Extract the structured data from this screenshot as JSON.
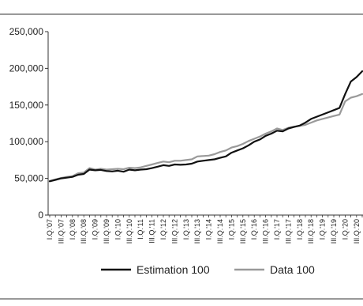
{
  "chart_data": {
    "type": "line",
    "title": "",
    "xlabel": "",
    "ylabel": "",
    "ylim": [
      0,
      250000
    ],
    "yticks": [
      0,
      50000,
      100000,
      150000,
      200000,
      250000
    ],
    "ytick_labels": [
      "0",
      "50,000",
      "100,000",
      "150,000",
      "200,000",
      "250,000"
    ],
    "grid": false,
    "legend_position": "bottom",
    "categories": [
      "I.Q.'07",
      "II.Q.'07",
      "III.Q.'07",
      "IV.Q.'07",
      "I.Q.'08",
      "II.Q.'08",
      "III.Q.'08",
      "IV.Q.'08",
      "I.Q.'09",
      "II.Q.'09",
      "III.Q.'09",
      "IV.Q.'09",
      "I.Q.'10",
      "II.Q.'10",
      "III.Q.'10",
      "IV.Q.'10",
      "I.Q.'11",
      "II.Q.'11",
      "III.Q.'11",
      "IV.Q.'11",
      "I.Q.'12",
      "II.Q.'12",
      "III.Q.'12",
      "IV.Q.'12",
      "I.Q.'13",
      "II.Q.'13",
      "III.Q.'13",
      "IV.Q.'13",
      "I.Q.'14",
      "II.Q.'14",
      "III.Q.'14",
      "IV.Q.'14",
      "I.Q.'15",
      "II.Q.'15",
      "III.Q.'15",
      "IV.Q.'15",
      "I.Q.'16",
      "II.Q.'16",
      "III.Q.'16",
      "IV.Q.'16",
      "I.Q.'17",
      "II.Q.'17",
      "III.Q.'17",
      "IV.Q.'17",
      "I.Q.'18",
      "II.Q.'18",
      "III.Q.'18",
      "IV.Q.'18",
      "I.Q.'19",
      "II.Q.'19",
      "III.Q.'19",
      "IV.Q.'19",
      "I.Q.'20",
      "II.Q.'20",
      "III.Q.'20",
      "IV.Q.'20"
    ],
    "tick_label_indices": [
      0,
      2,
      4,
      6,
      8,
      10,
      12,
      14,
      16,
      18,
      20,
      22,
      24,
      26,
      28,
      30,
      32,
      34,
      36,
      38,
      40,
      42,
      44,
      46,
      48,
      50,
      52,
      54
    ],
    "series": [
      {
        "name": "Estimation 100",
        "color": "#111111",
        "values": [
          46000,
          48000,
          50000,
          51000,
          52000,
          55000,
          56000,
          62000,
          61000,
          61500,
          60000,
          59500,
          60500,
          59000,
          62000,
          61000,
          62000,
          62500,
          64000,
          66000,
          68000,
          67000,
          69000,
          68500,
          69000,
          70000,
          73000,
          74000,
          75000,
          76000,
          78000,
          80000,
          85000,
          88000,
          91000,
          95000,
          100000,
          103000,
          108000,
          111000,
          115000,
          114000,
          118000,
          120000,
          122000,
          126000,
          131000,
          134000,
          137000,
          140000,
          143000,
          146000,
          165000,
          182000,
          188000,
          196000
        ]
      },
      {
        "name": "Data 100",
        "color": "#9a9a9a",
        "values": [
          46500,
          48500,
          50500,
          52000,
          53000,
          57000,
          58000,
          64000,
          62000,
          63000,
          62000,
          62500,
          63000,
          62500,
          64500,
          64000,
          65000,
          67000,
          69000,
          71000,
          73000,
          72000,
          74000,
          74000,
          75000,
          76000,
          80000,
          80500,
          81000,
          83000,
          86000,
          88000,
          92000,
          94000,
          97000,
          101000,
          104000,
          107000,
          111000,
          114000,
          118000,
          116000,
          119000,
          120500,
          121500,
          123000,
          126000,
          129000,
          131000,
          133000,
          135000,
          137000,
          155000,
          160000,
          162000,
          165000
        ]
      }
    ]
  }
}
